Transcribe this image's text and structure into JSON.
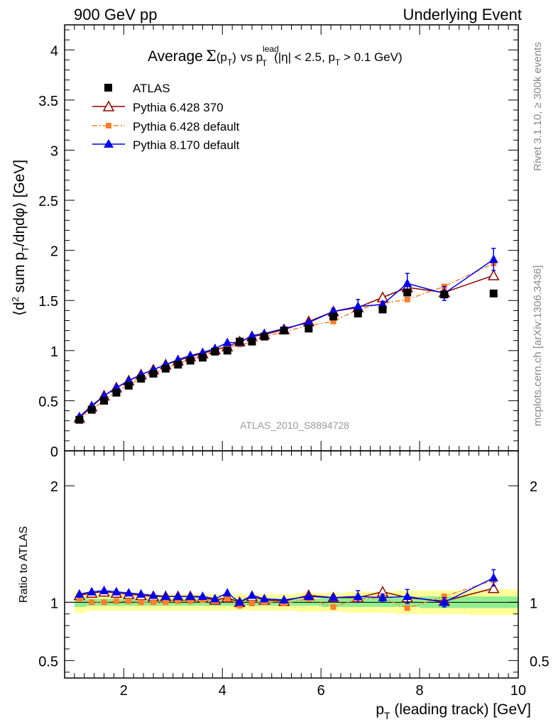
{
  "header": {
    "left": "900 GeV pp",
    "right": "Underlying Event"
  },
  "title": {
    "prefix": "Average",
    "sigma": "Σ",
    "sigma_arg": "(p",
    "sigma_sub": "T",
    "sigma_close": ")",
    "vs": "vs p",
    "lead_sup": "lead",
    "lead_sub": "T",
    "cuts_1": "(|η| < 2.5, p",
    "cuts_sub": "T",
    "cuts_2": " > 0.1 GeV)"
  },
  "ylabel_main": {
    "p1": "⟨d",
    "sup2": "2",
    "p2": " sum p",
    "subT": "T",
    "p3": "/dηdφ⟩ [GeV]"
  },
  "ylabel_ratio": "Ratio to ATLAS",
  "xlabel": {
    "p": "p",
    "sub": "T",
    "rest": " (leading track) [GeV]"
  },
  "analysis_tag": "ATLAS_2010_S8894728",
  "side_labels": {
    "rivet": "Rivet 3.1.10, ≥ 300k events",
    "mcplots": "mcplots.cern.ch [arXiv:1306.3436]"
  },
  "colors": {
    "atlas": "#000000",
    "p6_370": "#8b0000",
    "p6_default": "#ff7f2a",
    "p8": "#0000ee",
    "band_inner": "#90ee90",
    "band_outer": "#ffff99"
  },
  "chart_data": {
    "type": "scatter",
    "xlim": [
      0.8,
      10.0
    ],
    "ylim_main": [
      0.0,
      4.25
    ],
    "ylim_ratio": [
      0.35,
      2.3
    ],
    "x_ticks": [
      2,
      4,
      6,
      8,
      10
    ],
    "y_ticks_main": [
      0,
      0.5,
      1,
      1.5,
      2,
      2.5,
      3,
      3.5,
      4
    ],
    "y_tick_labels_main": [
      "0",
      "0.5",
      "1",
      "1.5",
      "2",
      "2.5",
      "3",
      "3.5",
      "4"
    ],
    "y_ticks_ratio": [
      0.5,
      1,
      2
    ],
    "y_tick_labels_ratio": [
      "0.5",
      "1",
      "2"
    ],
    "x": [
      1.1,
      1.35,
      1.6,
      1.85,
      2.1,
      2.35,
      2.6,
      2.85,
      3.1,
      3.35,
      3.6,
      3.85,
      4.1,
      4.35,
      4.6,
      4.85,
      5.25,
      5.75,
      6.25,
      6.75,
      7.25,
      7.75,
      8.5,
      9.5
    ],
    "band_edges": [
      1.0,
      1.25,
      1.5,
      1.75,
      2.0,
      2.25,
      2.5,
      2.75,
      3.0,
      3.25,
      3.5,
      3.75,
      4.0,
      4.25,
      4.5,
      4.75,
      5.0,
      5.5,
      6.0,
      6.5,
      7.0,
      7.5,
      8.0,
      9.0,
      10.0
    ],
    "band_inner": [
      0.04,
      0.03,
      0.03,
      0.03,
      0.03,
      0.03,
      0.03,
      0.03,
      0.03,
      0.03,
      0.03,
      0.03,
      0.03,
      0.03,
      0.03,
      0.03,
      0.03,
      0.03,
      0.04,
      0.04,
      0.04,
      0.04,
      0.05,
      0.05
    ],
    "band_outer": [
      0.09,
      0.07,
      0.07,
      0.07,
      0.07,
      0.07,
      0.07,
      0.07,
      0.07,
      0.07,
      0.07,
      0.07,
      0.07,
      0.07,
      0.07,
      0.07,
      0.07,
      0.08,
      0.08,
      0.09,
      0.09,
      0.1,
      0.1,
      0.11
    ],
    "series": [
      {
        "name": "ATLAS",
        "key": "atlas",
        "marker": "square",
        "line": "none",
        "values": [
          0.31,
          0.41,
          0.5,
          0.58,
          0.65,
          0.72,
          0.77,
          0.82,
          0.86,
          0.9,
          0.93,
          0.99,
          1.0,
          1.09,
          1.09,
          1.14,
          1.2,
          1.22,
          1.34,
          1.37,
          1.41,
          1.58,
          1.56,
          1.57
        ],
        "ratio": [
          1,
          1,
          1,
          1,
          1,
          1,
          1,
          1,
          1,
          1,
          1,
          1,
          1,
          1,
          1,
          1,
          1,
          1,
          1,
          1,
          1,
          1,
          1,
          1
        ]
      },
      {
        "name": "Pythia 6.428 370",
        "key": "p6_370",
        "marker": "triangle-open",
        "line": "solid",
        "values": [
          0.33,
          0.44,
          0.55,
          0.63,
          0.7,
          0.76,
          0.81,
          0.86,
          0.9,
          0.94,
          0.97,
          1.01,
          1.04,
          1.09,
          1.14,
          1.16,
          1.21,
          1.29,
          1.39,
          1.43,
          1.53,
          1.63,
          1.58,
          1.75
        ],
        "ratio": [
          1.06,
          1.08,
          1.09,
          1.08,
          1.07,
          1.06,
          1.05,
          1.05,
          1.05,
          1.05,
          1.04,
          1.02,
          1.04,
          1.0,
          1.05,
          1.02,
          1.01,
          1.06,
          1.04,
          1.04,
          1.09,
          1.04,
          1.01,
          1.12
        ]
      },
      {
        "name": "Pythia 6.428 default",
        "key": "p6_default",
        "marker": "square-small",
        "line": "dashdot",
        "values": [
          0.32,
          0.41,
          0.5,
          0.59,
          0.66,
          0.72,
          0.77,
          0.82,
          0.87,
          0.91,
          0.95,
          1.0,
          1.03,
          1.06,
          1.08,
          1.14,
          1.19,
          1.25,
          1.29,
          1.41,
          1.47,
          1.51,
          1.64,
          1.87
        ],
        "ratio": [
          1.03,
          1.0,
          1.0,
          1.01,
          1.01,
          1.0,
          1.0,
          1.0,
          1.01,
          1.01,
          1.02,
          1.01,
          1.03,
          0.97,
          0.99,
          1.0,
          0.99,
          1.03,
          0.96,
          1.03,
          1.04,
          0.95,
          1.05,
          1.19
        ]
      },
      {
        "name": "Pythia 8.170 default",
        "key": "p8",
        "marker": "triangle",
        "line": "solid",
        "values": [
          0.34,
          0.45,
          0.55,
          0.63,
          0.7,
          0.76,
          0.81,
          0.86,
          0.91,
          0.95,
          0.98,
          1.02,
          1.08,
          1.08,
          1.15,
          1.17,
          1.22,
          1.28,
          1.39,
          1.44,
          1.46,
          1.67,
          1.57,
          1.91
        ],
        "ratio": [
          1.07,
          1.09,
          1.1,
          1.09,
          1.08,
          1.07,
          1.06,
          1.05,
          1.05,
          1.05,
          1.05,
          1.03,
          1.08,
          1.0,
          1.06,
          1.03,
          1.02,
          1.05,
          1.04,
          1.05,
          1.04,
          1.05,
          1.0,
          1.21
        ]
      }
    ],
    "p8_err": [
      0,
      0,
      0,
      0,
      0,
      0,
      0,
      0,
      0,
      0,
      0,
      0,
      0,
      0,
      0,
      0,
      0,
      0,
      0.03,
      0.07,
      0.03,
      0.1,
      0.07,
      0.11
    ],
    "p8_ratio_err": [
      0,
      0,
      0,
      0,
      0,
      0,
      0,
      0,
      0,
      0,
      0,
      0,
      0,
      0,
      0,
      0,
      0,
      0,
      0.02,
      0.05,
      0.03,
      0.06,
      0.04,
      0.07
    ]
  }
}
